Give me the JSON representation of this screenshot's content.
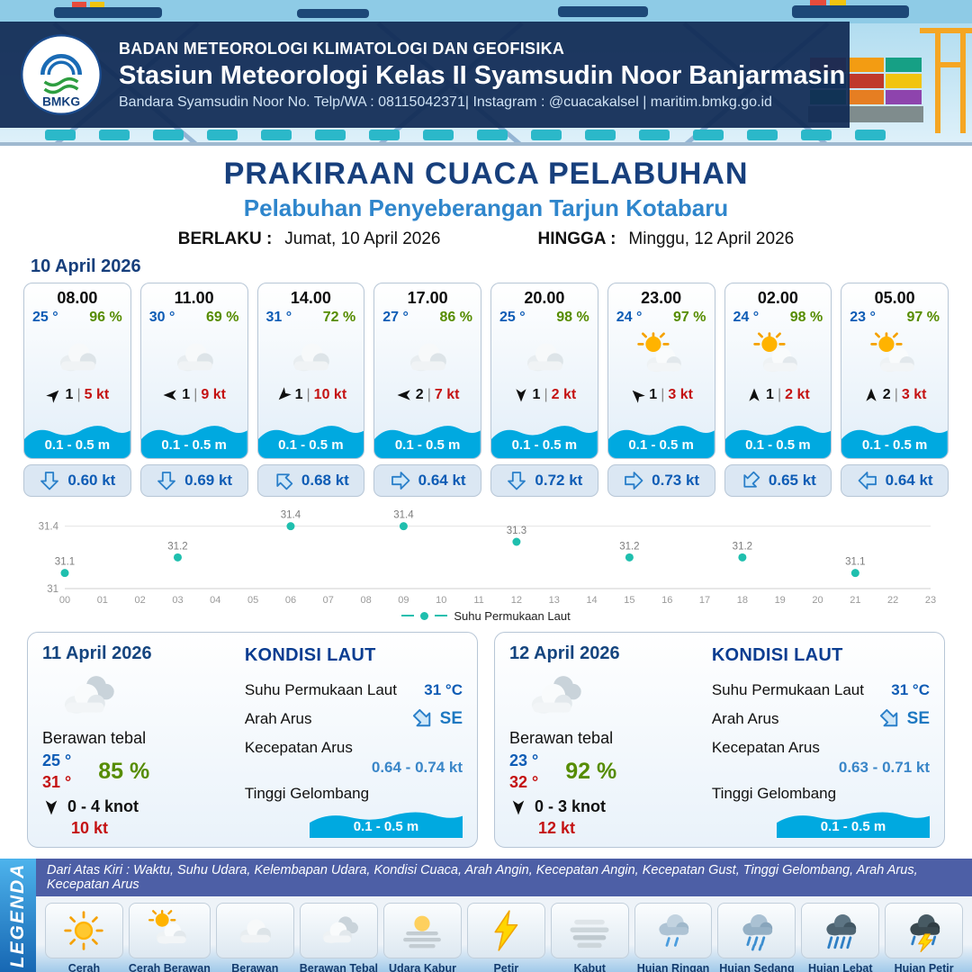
{
  "header": {
    "org": "BADAN METEOROLOGI KLIMATOLOGI DAN GEOFISIKA",
    "station": "Stasiun Meteorologi Kelas II Syamsudin Noor Banjarmasin",
    "contact": "Bandara Syamsudin Noor No. Telp/WA : 08115042371| Instagram : @cuacakalsel | maritim.bmkg.go.id",
    "logo_text": "BMKG"
  },
  "title": {
    "main": "PRAKIRAAN CUACA PELABUHAN",
    "sub": "Pelabuhan Penyeberangan Tarjun Kotabaru",
    "berlaku_label": "BERLAKU :",
    "berlaku_value": "Jumat, 10 April 2026",
    "hingga_label": "HINGGA :",
    "hingga_value": "Minggu, 12 April 2026"
  },
  "day1": {
    "date": "10 April 2026",
    "hours": [
      {
        "time": "08.00",
        "temp": "25 °",
        "rh": "96 %",
        "icon": "berawan",
        "wind_dir": "NE",
        "wind_val": "1",
        "wind_kt": "5 kt",
        "wave": "0.1 - 0.5 m",
        "cur_dir": "S",
        "cur_kt": "0.60 kt"
      },
      {
        "time": "11.00",
        "temp": "30 °",
        "rh": "69 %",
        "icon": "berawan",
        "wind_dir": "W",
        "wind_val": "1",
        "wind_kt": "9 kt",
        "wave": "0.1 - 0.5 m",
        "cur_dir": "S",
        "cur_kt": "0.69 kt"
      },
      {
        "time": "14.00",
        "temp": "31 °",
        "rh": "72 %",
        "icon": "berawan",
        "wind_dir": "SW",
        "wind_val": "1",
        "wind_kt": "10 kt",
        "wave": "0.1 - 0.5 m",
        "cur_dir": "NW",
        "cur_kt": "0.68 kt"
      },
      {
        "time": "17.00",
        "temp": "27 °",
        "rh": "86 %",
        "icon": "berawan",
        "wind_dir": "W",
        "wind_val": "2",
        "wind_kt": "7 kt",
        "wave": "0.1 - 0.5 m",
        "cur_dir": "E",
        "cur_kt": "0.64 kt"
      },
      {
        "time": "20.00",
        "temp": "25 °",
        "rh": "98 %",
        "icon": "berawan",
        "wind_dir": "S",
        "wind_val": "1",
        "wind_kt": "2 kt",
        "wave": "0.1 - 0.5 m",
        "cur_dir": "S",
        "cur_kt": "0.72 kt"
      },
      {
        "time": "23.00",
        "temp": "24 °",
        "rh": "97 %",
        "icon": "cerah-berawan",
        "wind_dir": "NW",
        "wind_val": "1",
        "wind_kt": "3 kt",
        "wave": "0.1 - 0.5 m",
        "cur_dir": "E",
        "cur_kt": "0.73 kt"
      },
      {
        "time": "02.00",
        "temp": "24 °",
        "rh": "98 %",
        "icon": "cerah-berawan",
        "wind_dir": "N",
        "wind_val": "1",
        "wind_kt": "2 kt",
        "wave": "0.1 - 0.5 m",
        "cur_dir": "SW",
        "cur_kt": "0.65 kt"
      },
      {
        "time": "05.00",
        "temp": "23 °",
        "rh": "97 %",
        "icon": "cerah-berawan",
        "wind_dir": "N",
        "wind_val": "2",
        "wind_kt": "3 kt",
        "wave": "0.1 - 0.5 m",
        "cur_dir": "W",
        "cur_kt": "0.64 kt"
      }
    ]
  },
  "chart_data": {
    "type": "scatter",
    "series_name": "Suhu Permukaan Laut",
    "x": [
      0,
      3,
      6,
      9,
      12,
      15,
      18,
      21
    ],
    "values": [
      31.1,
      31.2,
      31.4,
      31.4,
      31.3,
      31.2,
      31.2,
      31.1
    ],
    "xticks": [
      "00",
      "01",
      "02",
      "03",
      "04",
      "05",
      "06",
      "07",
      "08",
      "09",
      "10",
      "11",
      "12",
      "13",
      "14",
      "15",
      "16",
      "17",
      "18",
      "19",
      "20",
      "21",
      "22",
      "23"
    ],
    "ylim": [
      31,
      31.45
    ],
    "yticks": [
      31,
      31.4
    ],
    "point_color": "#1fbfae",
    "legend_position": "bottom",
    "grid": true
  },
  "days": [
    {
      "date": "11 April 2026",
      "icon": "berawan-tebal",
      "condition": "Berawan tebal",
      "temp_min": "25 °",
      "temp_max": "31 °",
      "rh": "85 %",
      "wind_dir": "S",
      "wind_range": "0  - 4 knot",
      "gust": "10 kt",
      "sea": {
        "heading": "KONDISI LAUT",
        "sst_label": "Suhu Permukaan Laut",
        "sst": "31 °C",
        "cur_dir_label": "Arah Arus",
        "cur_dir": "SE",
        "cur_speed_label": "Kecepatan Arus",
        "cur_speed": "0.64 - 0.74 kt",
        "wave_label": "Tinggi Gelombang",
        "wave": "0.1 - 0.5 m"
      }
    },
    {
      "date": "12 April 2026",
      "icon": "berawan-tebal",
      "condition": "Berawan tebal",
      "temp_min": "23 °",
      "temp_max": "32 °",
      "rh": "92 %",
      "wind_dir": "S",
      "wind_range": "0  - 3 knot",
      "gust": "12 kt",
      "sea": {
        "heading": "KONDISI LAUT",
        "sst_label": "Suhu Permukaan Laut",
        "sst": "31 °C",
        "cur_dir_label": "Arah Arus",
        "cur_dir": "SE",
        "cur_speed_label": "Kecepatan Arus",
        "cur_speed": "0.63 - 0.71 kt",
        "wave_label": "Tinggi Gelombang",
        "wave": "0.1 - 0.5 m"
      }
    }
  ],
  "legend": {
    "title": "LEGENDA",
    "note": "Dari Atas Kiri : Waktu, Suhu Udara, Kelembapan Udara, Kondisi Cuaca, Arah Angin, Kecepatan Angin, Kecepatan Gust, Tinggi Gelombang, Arah Arus, Kecepatan Arus",
    "items": [
      {
        "label": "Cerah",
        "icon": "cerah"
      },
      {
        "label": "Cerah Berawan",
        "icon": "cerah-berawan"
      },
      {
        "label": "Berawan",
        "icon": "berawan"
      },
      {
        "label": "Berawan Tebal",
        "icon": "berawan-tebal"
      },
      {
        "label": "Udara Kabur",
        "icon": "udara-kabur"
      },
      {
        "label": "Petir",
        "icon": "petir"
      },
      {
        "label": "Kabut",
        "icon": "kabut"
      },
      {
        "label": "Hujan Ringan",
        "icon": "hujan-ringan"
      },
      {
        "label": "Hujan Sedang",
        "icon": "hujan-sedang"
      },
      {
        "label": "Hujan Lebat",
        "icon": "hujan-lebat"
      },
      {
        "label": "Hujan Petir",
        "icon": "hujan-petir"
      }
    ]
  },
  "colors": {
    "navy": "#173f7c",
    "accent_blue": "#2f86cc",
    "temp_blue": "#0e5cb5",
    "humidity_green": "#568c00",
    "wind_red": "#c41212",
    "wave_blue": "#00a9e0",
    "sst_point": "#1fbfae"
  }
}
